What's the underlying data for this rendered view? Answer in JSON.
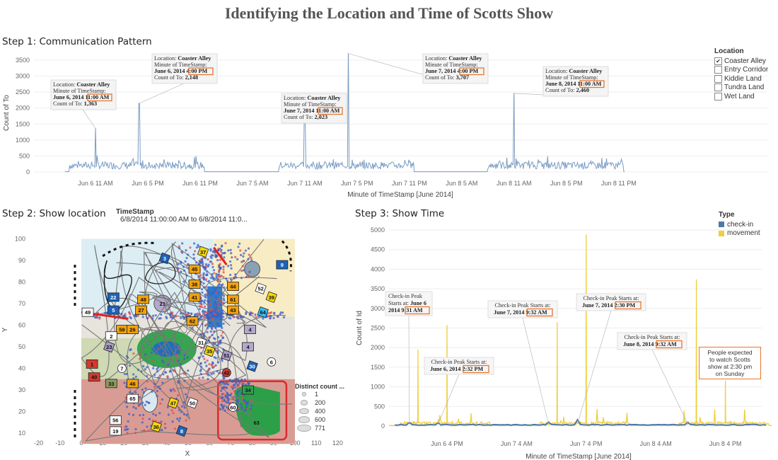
{
  "title": "Identifying the Location and Time of Scotts Show",
  "colors": {
    "line": "#7b9cc3",
    "checkin": "#4e79a7",
    "movement": "#f1ce3e",
    "highlight": "#e8772e"
  },
  "step1": {
    "title": "Step 1: Communication Pattern",
    "ylabel": "Count of To",
    "xlabel": "Minute of TimeStamp [June 2014]",
    "legend": {
      "title": "Location",
      "items": [
        {
          "label": "Coaster Alley",
          "checked": true
        },
        {
          "label": "Entry Corridor",
          "checked": false
        },
        {
          "label": "Kiddie Land",
          "checked": false
        },
        {
          "label": "Tundra Land",
          "checked": false
        },
        {
          "label": "Wet Land",
          "checked": false
        }
      ]
    },
    "tooltips": [
      {
        "location_label": "Location:",
        "location": "Coaster Alley",
        "minute_label": "Minute of TimeStamp:",
        "date": "June 6, 2014",
        "time": "11:00 AM",
        "count_label": "Count of To:",
        "count": "1,363"
      },
      {
        "location_label": "Location:",
        "location": "Coaster Alley",
        "minute_label": "Minute of TimeStamp:",
        "date": "June 6, 2014",
        "time": "4:00 PM",
        "count_label": "Count of To:",
        "count": "2,148"
      },
      {
        "location_label": "Location:",
        "location": "Coaster Alley",
        "minute_label": "Minute of TimeStamp:",
        "date": "June 7, 2014",
        "time": "11:00 AM",
        "count_label": "Count of To:",
        "count": "2,023"
      },
      {
        "location_label": "Location:",
        "location": "Coaster Alley",
        "minute_label": "Minute of TimeStamp:",
        "date": "June 7, 2014",
        "time": "4:00 PM",
        "count_label": "Count of To:",
        "count": "3,707"
      },
      {
        "location_label": "Location:",
        "location": "Coaster Alley",
        "minute_label": "Minute of TimeStamp:",
        "date": "June 8, 2014",
        "time": "11:00 AM",
        "count_label": "Count of To:",
        "count": "2,460"
      }
    ]
  },
  "step2": {
    "title": "Step 2: Show location",
    "timestamp_title": "TimeStamp",
    "timestamp_range": "6/8/2014 11:00:00 AM to 6/8/2014 11:0...",
    "xlabel": "X",
    "ylabel": "Y",
    "size_legend": {
      "title": "Distinct count ...",
      "values": [
        "1",
        "200",
        "400",
        "600",
        "771"
      ]
    }
  },
  "step3": {
    "title": "Step 3: Show Time",
    "ylabel": "Count of Id",
    "xlabel": "Minute of TimeStamp [June 2014]",
    "legend": {
      "title": "Type",
      "items": [
        {
          "label": "check-in",
          "color": "#4e79a7"
        },
        {
          "label": "movement",
          "color": "#f1ce3e"
        }
      ]
    },
    "annotations": [
      {
        "label": "Check-in Peak",
        "label2": "Starts at:",
        "date": "June 6, 2014",
        "time": "9:31 AM"
      },
      {
        "label": "Check-in Peak Starts at:",
        "date": "June 6, 2014",
        "time": "2:32 PM"
      },
      {
        "label": "Check-in Peak Starts at:",
        "date": "June 7, 2014",
        "time": "9:32 AM"
      },
      {
        "label": "Check-in Peak Starts at:",
        "date": "June 7, 2014",
        "time": "2:30 PM"
      },
      {
        "label": "Check-in Peak Starts at:",
        "date": "June 8, 2014",
        "time": "9:32 AM"
      }
    ],
    "note": [
      "People expected",
      "to watch Scotts",
      "show at 2:30 pm",
      "on Sunday"
    ]
  },
  "chart_data": [
    {
      "type": "line",
      "title": "Step 1: Communication Pattern",
      "xlabel": "Minute of TimeStamp [June 2014]",
      "ylabel": "Count of To",
      "ylim": [
        0,
        3700
      ],
      "yticks": [
        0,
        500,
        1000,
        1500,
        2000,
        2500,
        3000,
        3500
      ],
      "x_ticks": [
        "Jun 6 11 AM",
        "Jun 6 5 PM",
        "Jun 6 11 PM",
        "Jun 7 5 AM",
        "Jun 7 11 AM",
        "Jun 7 5 PM",
        "Jun 7 11 PM",
        "Jun 8 5 AM",
        "Jun 8 11 AM",
        "Jun 8 5 PM",
        "Jun 8 11 PM"
      ],
      "series": [
        {
          "values": [
            {
              "x": "Jun 6 8:00 AM",
              "y": 50
            },
            {
              "x": "Jun 6 11:00 AM",
              "y": 1363
            },
            {
              "x": "Jun 6 4:00 PM",
              "y": 2148
            },
            {
              "x": "Jun 6 11:30 PM",
              "y": 10
            },
            {
              "x": "Jun 7 8:00 AM",
              "y": 50
            },
            {
              "x": "Jun 7 11:00 AM",
              "y": 2023
            },
            {
              "x": "Jun 7 4:00 PM",
              "y": 3707
            },
            {
              "x": "Jun 7 11:30 PM",
              "y": 10
            },
            {
              "x": "Jun 8 8:00 AM",
              "y": 50
            },
            {
              "x": "Jun 8 11:00 AM",
              "y": 2460
            },
            {
              "x": "Jun 8 11:30 PM",
              "y": 20
            }
          ]
        }
      ],
      "legend": "right"
    },
    {
      "type": "line",
      "title": "Step 3: Show Time",
      "xlabel": "Minute of TimeStamp [June 2014]",
      "ylabel": "Count of Id",
      "ylim": [
        0,
        5000
      ],
      "yticks": [
        0,
        500,
        1000,
        1500,
        2000,
        2500,
        3000,
        3500,
        4000,
        4500,
        5000
      ],
      "x_ticks": [
        "Jun 6 4 PM",
        "Jun 7 4 AM",
        "Jun 7 4 PM",
        "Jun 8 4 AM",
        "Jun 8 4 PM"
      ],
      "series": [
        {
          "name": "check-in",
          "values": [
            {
              "x": "Jun 6 9:31 AM",
              "y": 40
            },
            {
              "x": "Jun 6 2:32 PM",
              "y": 40
            },
            {
              "x": "Jun 7 9:32 AM",
              "y": 60
            },
            {
              "x": "Jun 7 2:30 PM",
              "y": 110
            },
            {
              "x": "Jun 8 9:32 AM",
              "y": 50
            }
          ]
        },
        {
          "name": "movement",
          "values": [
            {
              "x": "Jun 6 11:00 AM",
              "y": 1950
            },
            {
              "x": "Jun 6 4:00 PM",
              "y": 2580
            },
            {
              "x": "Jun 7 11:00 AM",
              "y": 2650
            },
            {
              "x": "Jun 7 4:00 PM",
              "y": 4880
            },
            {
              "x": "Jun 8 11:00 AM",
              "y": 3740
            },
            {
              "x": "Jun 8 4:00 PM",
              "y": 1160
            }
          ]
        }
      ],
      "legend": "top-right"
    },
    {
      "type": "scatter",
      "title": "Step 2: Show location",
      "xlabel": "X",
      "ylabel": "Y",
      "xlim": [
        -20,
        120
      ],
      "ylim": [
        5,
        100
      ],
      "xticks": [
        -20,
        -10,
        0,
        10,
        20,
        30,
        40,
        50,
        60,
        70,
        80,
        90,
        100,
        110,
        120
      ],
      "yticks": [
        10,
        20,
        30,
        40,
        50,
        60,
        70,
        80,
        90,
        100
      ]
    }
  ]
}
